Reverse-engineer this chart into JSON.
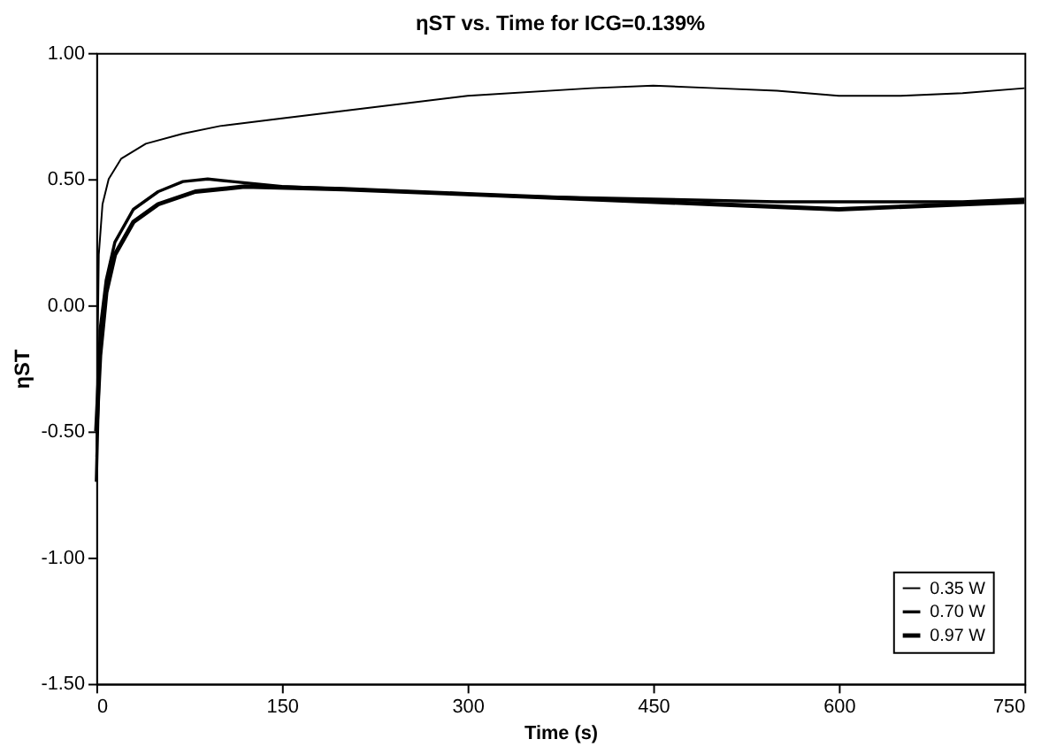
{
  "chart_data": {
    "type": "line",
    "title": "ηST vs. Time for ICG=0.139%",
    "xlabel": "Time (s)",
    "ylabel": "ηST",
    "xlim": [
      0,
      750
    ],
    "xticks": [
      0,
      150,
      300,
      450,
      600,
      750
    ],
    "ylim": [
      -1.5,
      1.0
    ],
    "yticks": [
      {
        "value": -1.5,
        "label": "-1.50"
      },
      {
        "value": -1.0,
        "label": "-1.00"
      },
      {
        "value": -0.5,
        "label": "-0.50"
      },
      {
        "value": 0,
        "label": "0.00"
      },
      {
        "value": 0.5,
        "label": "0.50"
      },
      {
        "value": 1.0,
        "label": "1.00"
      }
    ],
    "grid": false,
    "legend": "bottom right",
    "marker": "none",
    "line_style": "solid",
    "series": [
      {
        "name": "0.35 W",
        "color": "#000000",
        "x": [
          0,
          2,
          5,
          10,
          20,
          40,
          70,
          100,
          150,
          200,
          300,
          400,
          450,
          500,
          550,
          600,
          650,
          700,
          750
        ],
        "values": [
          -0.6,
          0.2,
          0.4,
          0.5,
          0.58,
          0.64,
          0.68,
          0.71,
          0.74,
          0.77,
          0.83,
          0.86,
          0.87,
          0.86,
          0.85,
          0.83,
          0.83,
          0.84,
          0.86
        ]
      },
      {
        "name": "0.70 W",
        "color": "#000000",
        "x": [
          0,
          3,
          8,
          15,
          30,
          50,
          70,
          90,
          110,
          150,
          250,
          350,
          450,
          550,
          620,
          700,
          750
        ],
        "values": [
          -0.7,
          -0.1,
          0.1,
          0.25,
          0.38,
          0.45,
          0.49,
          0.5,
          0.49,
          0.47,
          0.45,
          0.43,
          0.42,
          0.41,
          0.41,
          0.41,
          0.42
        ]
      },
      {
        "name": "0.97 W",
        "color": "#000000",
        "x": [
          0,
          3,
          8,
          15,
          30,
          50,
          80,
          120,
          200,
          300,
          400,
          500,
          600,
          700,
          750
        ],
        "values": [
          -0.5,
          -0.2,
          0.05,
          0.2,
          0.33,
          0.4,
          0.45,
          0.47,
          0.46,
          0.44,
          0.42,
          0.4,
          0.38,
          0.4,
          0.41
        ]
      }
    ]
  }
}
